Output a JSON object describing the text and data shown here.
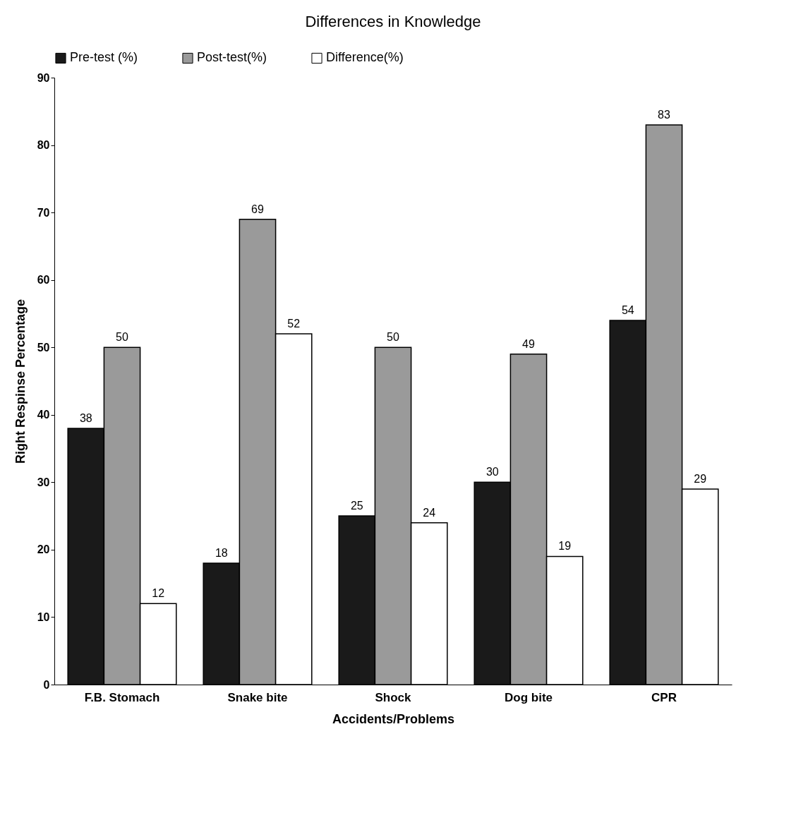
{
  "chart_data": {
    "type": "bar",
    "title": "Differences in Knowledge",
    "xlabel": "Accidents/Problems",
    "ylabel": "Right Respinse Percentage",
    "categories": [
      "F.B. Stomach",
      "Snake bite",
      "Shock",
      "Dog bite",
      "CPR"
    ],
    "series": [
      {
        "name": "Pre-test (%)",
        "color": "#1a1a1a",
        "values": [
          38,
          18,
          25,
          30,
          54
        ]
      },
      {
        "name": "Post-test(%)",
        "color": "#9a9a9a",
        "values": [
          50,
          69,
          50,
          49,
          83
        ]
      },
      {
        "name": "Difference(%)",
        "color": "#ffffff",
        "values": [
          12,
          52,
          24,
          19,
          29
        ]
      }
    ],
    "ylim": [
      0,
      90
    ],
    "yticks": [
      0,
      10,
      20,
      30,
      40,
      50,
      60,
      70,
      80,
      90
    ],
    "grid": false,
    "legend": "top",
    "data_labels": true
  }
}
